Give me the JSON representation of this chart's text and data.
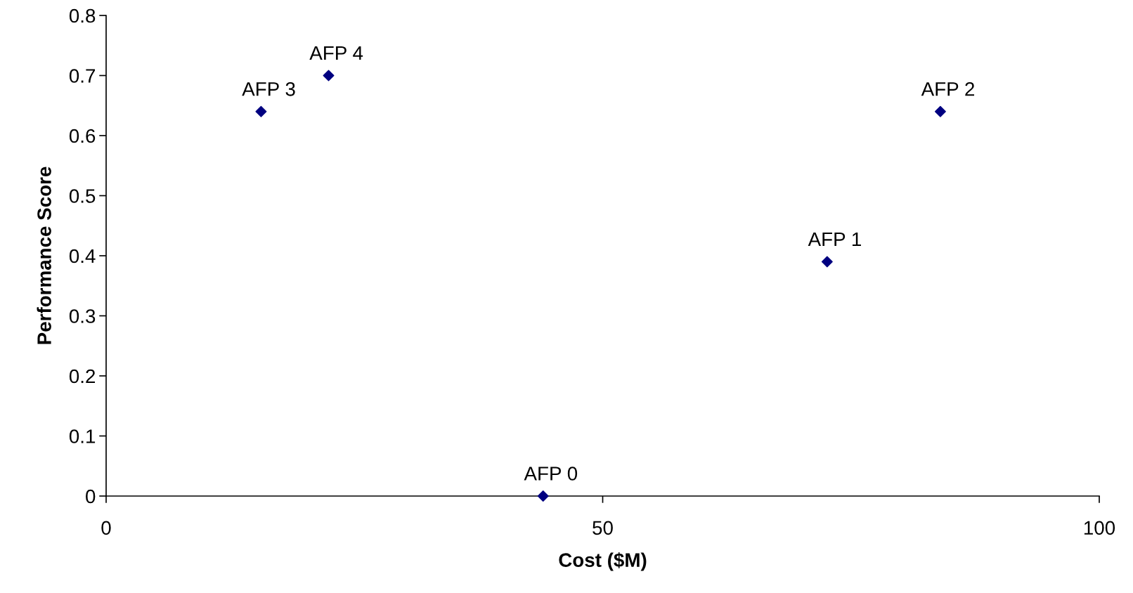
{
  "chart_data": {
    "type": "scatter",
    "xlabel": "Cost ($M)",
    "ylabel": "Performance Score",
    "x": [
      44,
      72.6,
      84,
      15.6,
      22.4
    ],
    "values": [
      0,
      0.39,
      0.64,
      0.64,
      0.7
    ],
    "color": "#000080",
    "marker": "diamond",
    "xlim": [
      0,
      100
    ],
    "xticks": [
      0,
      50,
      100
    ],
    "ylim": [
      0,
      0.8
    ],
    "yticks": [
      0,
      0.1,
      0.2,
      0.3,
      0.4,
      0.5,
      0.6,
      0.7,
      0.8
    ],
    "grid": false,
    "legend": false,
    "annotations": [
      {
        "text": "AFP 0",
        "x": 44,
        "y": 0
      },
      {
        "text": "AFP 1",
        "x": 72.6,
        "y": 0.39
      },
      {
        "text": "AFP 2",
        "x": 84,
        "y": 0.64
      },
      {
        "text": "AFP 3",
        "x": 15.6,
        "y": 0.64
      },
      {
        "text": "AFP 4",
        "x": 22.4,
        "y": 0.7
      }
    ]
  }
}
